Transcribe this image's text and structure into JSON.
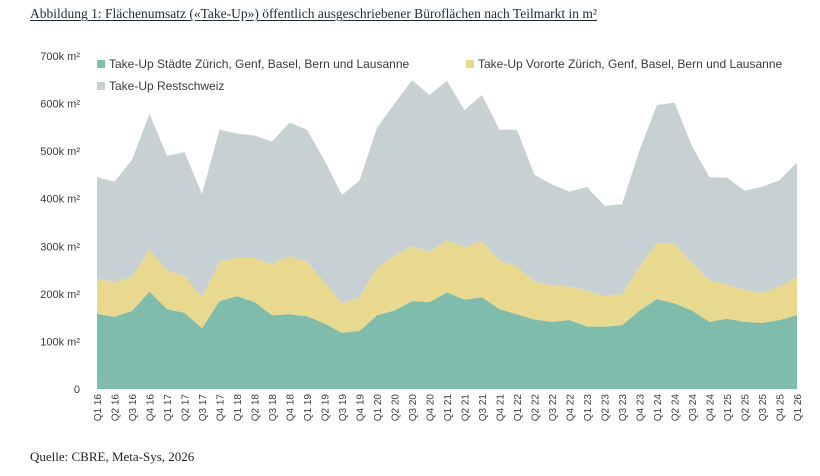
{
  "caption": "Abbildung 1: Flächenumsatz («Take-Up») öffentlich ausgeschriebener Büroflächen nach Teilmarkt in m²",
  "source": "Quelle: CBRE, Meta-Sys, 2026",
  "chart_data": {
    "type": "area",
    "stacked": true,
    "title": "",
    "xlabel": "",
    "ylabel": "",
    "ylim": [
      0,
      700000
    ],
    "yticks": [
      0,
      100000,
      200000,
      300000,
      400000,
      500000,
      600000,
      700000
    ],
    "ytick_labels": [
      "0",
      "100k m²",
      "200k m²",
      "300k m²",
      "400k m²",
      "500k m²",
      "600k m²",
      "700k m²"
    ],
    "grid": false,
    "legend_position": "top",
    "categories": [
      "Q1 16",
      "Q2 16",
      "Q3 16",
      "Q4 16",
      "Q1 17",
      "Q2 17",
      "Q3 17",
      "Q4 17",
      "Q1 18",
      "Q2 18",
      "Q3 18",
      "Q4 18",
      "Q1 19",
      "Q2 19",
      "Q3 19",
      "Q4 19",
      "Q1 20",
      "Q2 20",
      "Q3 20",
      "Q4 20",
      "Q1 21",
      "Q2 21",
      "Q3 21",
      "Q4 21",
      "Q1 22",
      "Q2 22",
      "Q3 22",
      "Q4 22",
      "Q1 23",
      "Q2 23",
      "Q3 23",
      "Q4 23",
      "Q1 24",
      "Q2 24",
      "Q3 24",
      "Q4 24",
      "Q1 25",
      "Q2 25",
      "Q3 25",
      "Q4 25",
      "Q1 26"
    ],
    "series": [
      {
        "name": "Take-Up Städte Zürich, Genf, Basel, Bern und Lausanne",
        "color": "#7fbcab",
        "values": [
          158000,
          152000,
          164000,
          205000,
          168000,
          160000,
          128000,
          185000,
          195000,
          183000,
          155000,
          157000,
          153000,
          138000,
          118000,
          122000,
          155000,
          165000,
          185000,
          183000,
          203000,
          188000,
          193000,
          168000,
          157000,
          146000,
          141000,
          145000,
          131000,
          131000,
          134000,
          165000,
          189000,
          180000,
          165000,
          141000,
          148000,
          141000,
          139000,
          145000,
          155000
        ]
      },
      {
        "name": "Take-Up Vororte Zürich, Genf, Basel, Bern und Lausanne",
        "color": "#e8d98e",
        "values": [
          74000,
          72000,
          72000,
          88000,
          82000,
          78000,
          64000,
          82000,
          82000,
          92000,
          107000,
          122000,
          114000,
          87000,
          62000,
          70000,
          100000,
          115000,
          115000,
          105000,
          110000,
          110000,
          118000,
          102000,
          100000,
          80000,
          77000,
          70000,
          76000,
          64000,
          66000,
          92000,
          118000,
          126000,
          100000,
          88000,
          72000,
          67000,
          63000,
          70000,
          80000
        ]
      },
      {
        "name": "Take-Up Restschweiz",
        "color": "#c7d0d3",
        "values": [
          213000,
          212000,
          246000,
          285000,
          240000,
          260000,
          218000,
          278000,
          260000,
          258000,
          258000,
          281000,
          278000,
          255000,
          228000,
          246000,
          294000,
          320000,
          349000,
          330000,
          335000,
          288000,
          307000,
          275000,
          288000,
          224000,
          212000,
          200000,
          218000,
          190000,
          188000,
          245000,
          290000,
          296000,
          245000,
          216000,
          224000,
          209000,
          223000,
          224000,
          241000
        ]
      }
    ]
  }
}
